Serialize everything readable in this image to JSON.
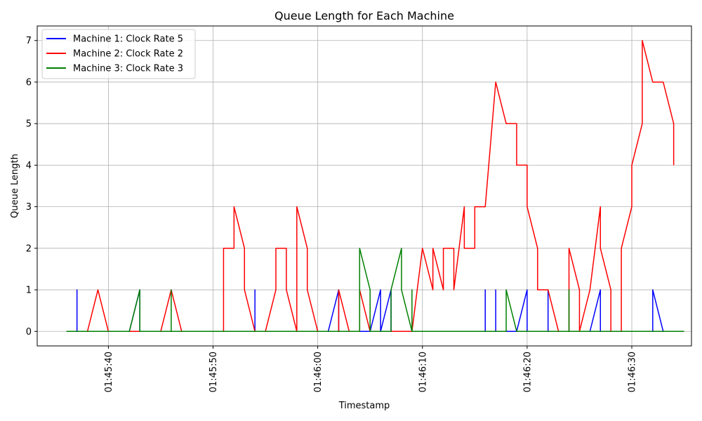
{
  "chart_data": {
    "type": "line",
    "title": "Queue Length for Each Machine",
    "xlabel": "Timestamp",
    "ylabel": "Queue Length",
    "x_unit": "time (HH:MM:SS)",
    "xlim": [
      "01:45:33.2",
      "01:46:35.7"
    ],
    "ylim": [
      -0.35,
      7.35
    ],
    "x_ticks": [
      "01:45:40",
      "01:45:50",
      "01:46:00",
      "01:46:10",
      "01:46:20",
      "01:46:30"
    ],
    "y_ticks": [
      0,
      1,
      2,
      3,
      4,
      5,
      6,
      7
    ],
    "grid": true,
    "legend_position": "upper-left",
    "series": [
      {
        "name": "Machine 1: Clock Rate 5",
        "color": "#0000ff",
        "points": [
          [
            "01:45:36",
            0
          ],
          [
            "01:45:37",
            0
          ],
          [
            "01:45:37",
            1
          ],
          [
            "01:45:37",
            0
          ],
          [
            "01:45:42",
            0
          ],
          [
            "01:45:43",
            1
          ],
          [
            "01:45:43",
            0
          ],
          [
            "01:45:54",
            0
          ],
          [
            "01:45:54",
            1
          ],
          [
            "01:45:54",
            0
          ],
          [
            "01:46:01",
            0
          ],
          [
            "01:46:02",
            1
          ],
          [
            "01:46:02",
            0
          ],
          [
            "01:46:05",
            0
          ],
          [
            "01:46:06",
            1
          ],
          [
            "01:46:06",
            0
          ],
          [
            "01:46:07",
            1
          ],
          [
            "01:46:07",
            0
          ],
          [
            "01:46:16",
            0
          ],
          [
            "01:46:16",
            1
          ],
          [
            "01:46:16",
            0
          ],
          [
            "01:46:17",
            0
          ],
          [
            "01:46:17",
            1
          ],
          [
            "01:46:17",
            0
          ],
          [
            "01:46:19",
            0
          ],
          [
            "01:46:20",
            1
          ],
          [
            "01:46:20",
            0
          ],
          [
            "01:46:22",
            0
          ],
          [
            "01:46:22",
            1
          ],
          [
            "01:46:22",
            0
          ],
          [
            "01:46:26",
            0
          ],
          [
            "01:46:27",
            1
          ],
          [
            "01:46:27",
            0
          ],
          [
            "01:46:32",
            0
          ],
          [
            "01:46:32",
            1
          ],
          [
            "01:46:33",
            0
          ],
          [
            "01:46:34",
            0
          ]
        ]
      },
      {
        "name": "Machine 2: Clock Rate 2",
        "color": "#ff0000",
        "points": [
          [
            "01:45:38",
            0
          ],
          [
            "01:45:39",
            1
          ],
          [
            "01:45:40",
            0
          ],
          [
            "01:45:45",
            0
          ],
          [
            "01:45:46",
            1
          ],
          [
            "01:45:47",
            0
          ],
          [
            "01:45:51",
            0
          ],
          [
            "01:45:51",
            2
          ],
          [
            "01:45:52",
            2
          ],
          [
            "01:45:52",
            3
          ],
          [
            "01:45:53",
            2
          ],
          [
            "01:45:53",
            1
          ],
          [
            "01:45:54",
            0
          ],
          [
            "01:45:55",
            0
          ],
          [
            "01:45:56",
            1
          ],
          [
            "01:45:56",
            2
          ],
          [
            "01:45:57",
            2
          ],
          [
            "01:45:57",
            1
          ],
          [
            "01:45:58",
            0
          ],
          [
            "01:45:58",
            3
          ],
          [
            "01:45:59",
            2
          ],
          [
            "01:45:59",
            1
          ],
          [
            "01:46:00",
            0
          ],
          [
            "01:46:02",
            0
          ],
          [
            "01:46:02",
            1
          ],
          [
            "01:46:03",
            0
          ],
          [
            "01:46:04",
            0
          ],
          [
            "01:46:04",
            1
          ],
          [
            "01:46:05",
            0
          ],
          [
            "01:46:09",
            0
          ],
          [
            "01:46:10",
            2
          ],
          [
            "01:46:11",
            1
          ],
          [
            "01:46:11",
            2
          ],
          [
            "01:46:12",
            1
          ],
          [
            "01:46:12",
            2
          ],
          [
            "01:46:13",
            2
          ],
          [
            "01:46:13",
            1
          ],
          [
            "01:46:14",
            3
          ],
          [
            "01:46:14",
            2
          ],
          [
            "01:46:15",
            2
          ],
          [
            "01:46:15",
            3
          ],
          [
            "01:46:16",
            3
          ],
          [
            "01:46:17",
            6
          ],
          [
            "01:46:18",
            5
          ],
          [
            "01:46:19",
            5
          ],
          [
            "01:46:19",
            4
          ],
          [
            "01:46:20",
            4
          ],
          [
            "01:46:20",
            3
          ],
          [
            "01:46:21",
            2
          ],
          [
            "01:46:21",
            1
          ],
          [
            "01:46:22",
            1
          ],
          [
            "01:46:23",
            0
          ],
          [
            "01:46:24",
            0
          ],
          [
            "01:46:24",
            2
          ],
          [
            "01:46:25",
            1
          ],
          [
            "01:46:25",
            0
          ],
          [
            "01:46:26",
            1
          ],
          [
            "01:46:27",
            3
          ],
          [
            "01:46:27",
            2
          ],
          [
            "01:46:28",
            1
          ],
          [
            "01:46:28",
            0
          ],
          [
            "01:46:29",
            0
          ],
          [
            "01:46:29",
            2
          ],
          [
            "01:46:30",
            3
          ],
          [
            "01:46:30",
            4
          ],
          [
            "01:46:31",
            5
          ],
          [
            "01:46:31",
            7
          ],
          [
            "01:46:32",
            6
          ],
          [
            "01:46:33",
            6
          ],
          [
            "01:46:34",
            5
          ],
          [
            "01:46:34",
            4
          ]
        ]
      },
      {
        "name": "Machine 3: Clock Rate 3",
        "color": "#008000",
        "points": [
          [
            "01:45:36",
            0
          ],
          [
            "01:45:42",
            0
          ],
          [
            "01:45:43",
            1
          ],
          [
            "01:45:43",
            0
          ],
          [
            "01:45:46",
            0
          ],
          [
            "01:45:46",
            1
          ],
          [
            "01:45:46",
            0
          ],
          [
            "01:46:04",
            0
          ],
          [
            "01:46:04",
            2
          ],
          [
            "01:46:05",
            1
          ],
          [
            "01:46:05",
            0
          ],
          [
            "01:46:07",
            0
          ],
          [
            "01:46:07",
            1
          ],
          [
            "01:46:08",
            2
          ],
          [
            "01:46:08",
            1
          ],
          [
            "01:46:09",
            0
          ],
          [
            "01:46:09",
            1
          ],
          [
            "01:46:09",
            0
          ],
          [
            "01:46:18",
            0
          ],
          [
            "01:46:18",
            1
          ],
          [
            "01:46:19",
            0
          ],
          [
            "01:46:24",
            0
          ],
          [
            "01:46:24",
            1
          ],
          [
            "01:46:24",
            0
          ],
          [
            "01:46:35",
            0
          ]
        ]
      }
    ]
  }
}
